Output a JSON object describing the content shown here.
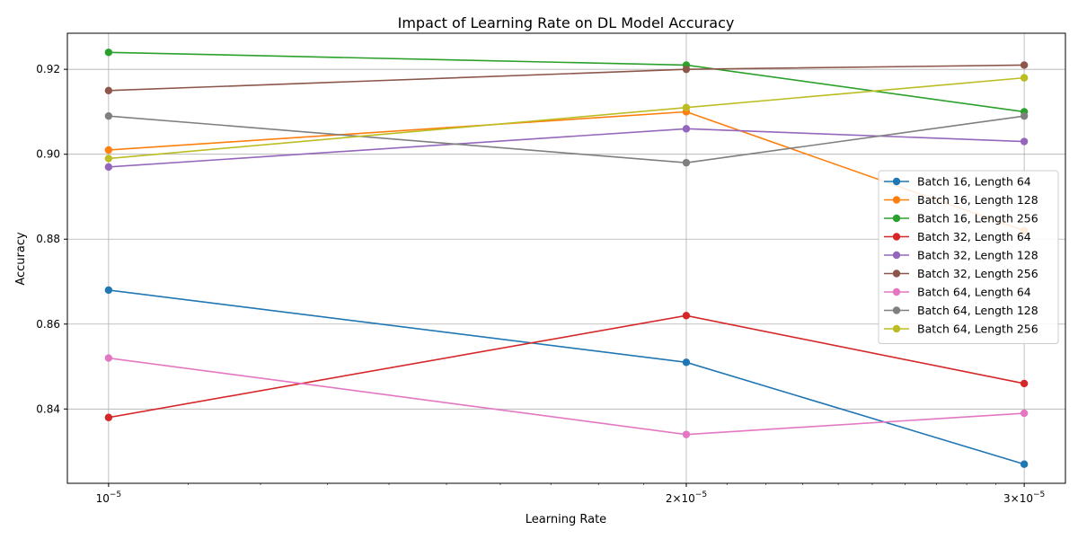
{
  "chart_data": {
    "type": "line",
    "title": "Impact of Learning Rate on DL Model Accuracy",
    "xlabel": "Learning Rate",
    "ylabel": "Accuracy",
    "x_scale": "log",
    "x": [
      1e-05,
      2e-05,
      3e-05
    ],
    "x_tick_labels": [
      {
        "base": "10",
        "exp": "−5"
      },
      {
        "base": "2×10",
        "exp": "−5"
      },
      {
        "base": "3×10",
        "exp": "−5"
      }
    ],
    "y_ticks": [
      "0.84",
      "0.86",
      "0.88",
      "0.90",
      "0.92"
    ],
    "ylim": [
      0.8225,
      0.9285
    ],
    "grid": true,
    "legend_position": "right",
    "series": [
      {
        "name": "Batch 16, Length 64",
        "color": "#1f77b4",
        "values": [
          0.868,
          0.851,
          0.827
        ]
      },
      {
        "name": "Batch 16, Length 128",
        "color": "#ff7f0e",
        "values": [
          0.901,
          0.91,
          0.882
        ]
      },
      {
        "name": "Batch 16, Length 256",
        "color": "#2ca02c",
        "values": [
          0.924,
          0.921,
          0.91
        ]
      },
      {
        "name": "Batch 32, Length 64",
        "color": "#d62728",
        "values": [
          0.838,
          0.862,
          0.846
        ]
      },
      {
        "name": "Batch 32, Length 128",
        "color": "#9467bd",
        "values": [
          0.897,
          0.906,
          0.903
        ]
      },
      {
        "name": "Batch 32, Length 256",
        "color": "#8c564b",
        "values": [
          0.915,
          0.92,
          0.921
        ]
      },
      {
        "name": "Batch 64, Length 64",
        "color": "#e377c2",
        "values": [
          0.852,
          0.834,
          0.839
        ]
      },
      {
        "name": "Batch 64, Length 128",
        "color": "#7f7f7f",
        "values": [
          0.909,
          0.898,
          0.909
        ]
      },
      {
        "name": "Batch 64, Length 256",
        "color": "#bcbd22",
        "values": [
          0.899,
          0.911,
          0.918
        ]
      }
    ]
  }
}
